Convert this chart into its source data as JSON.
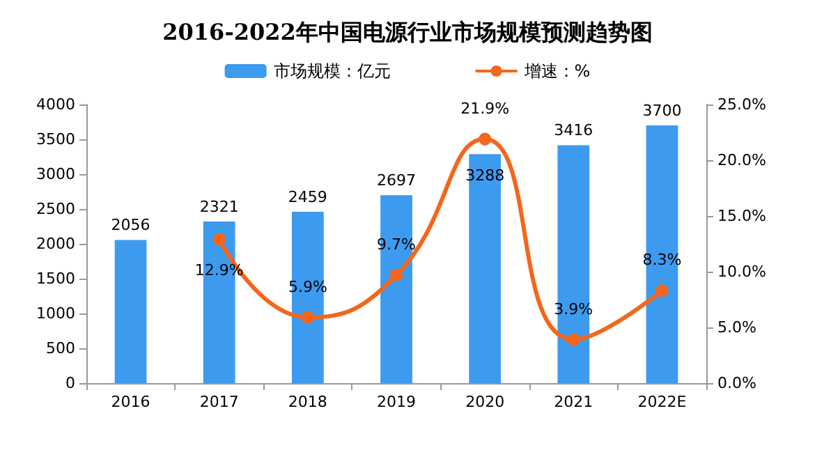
{
  "chart_data": {
    "type": "bar",
    "title": "2016-2022年中国电源行业市场规模预测趋势图",
    "categories": [
      "2016",
      "2017",
      "2018",
      "2019",
      "2020",
      "2021",
      "2022E"
    ],
    "series": [
      {
        "name": "市场规模：亿元",
        "color": "#3d9bef",
        "values": [
          2056,
          2321,
          2459,
          2697,
          3288,
          3416,
          3700
        ],
        "value_labels": [
          "2056",
          "2321",
          "2459",
          "2697",
          "3288",
          "3416",
          "3700"
        ]
      },
      {
        "name": "增速：%",
        "type": "line",
        "axis": "y2",
        "color": "#f4661c",
        "values": [
          null,
          12.9,
          5.9,
          9.7,
          21.9,
          3.9,
          8.3
        ],
        "value_labels": [
          null,
          "12.9%",
          "5.9%",
          "9.7%",
          "21.9%",
          "3.9%",
          "8.3%"
        ]
      }
    ],
    "ylim": [
      0,
      4000
    ],
    "yticks": [
      0,
      500,
      1000,
      1500,
      2000,
      2500,
      3000,
      3500,
      4000
    ],
    "y2lim": [
      0,
      25
    ],
    "y2ticks": [
      {
        "value": 0,
        "label": "0.0%"
      },
      {
        "value": 5,
        "label": "5.0%"
      },
      {
        "value": 10,
        "label": "10.0%"
      },
      {
        "value": 15,
        "label": "15.0%"
      },
      {
        "value": 20,
        "label": "20.0%"
      },
      {
        "value": 25,
        "label": "25.0%"
      }
    ],
    "legend": "top",
    "marker": "circle",
    "grid": false
  }
}
